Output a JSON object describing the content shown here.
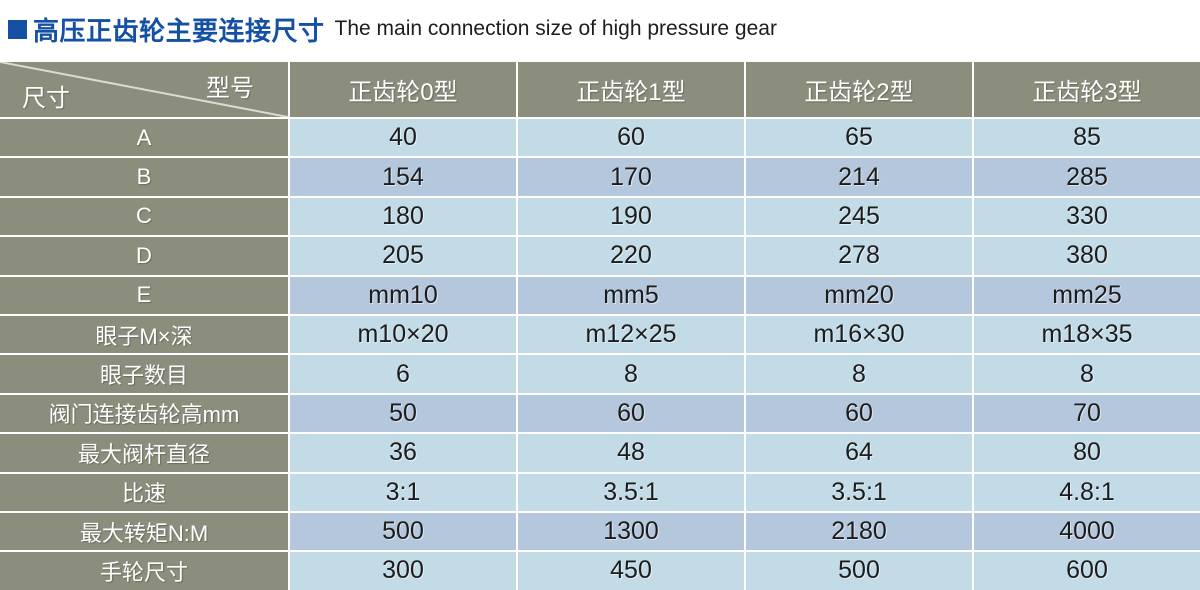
{
  "title": {
    "zh": "高压正齿轮主要连接尺寸",
    "en": "The main connection size of high pressure gear"
  },
  "colors": {
    "title_accent": "#1450a4",
    "header_bg": "#8b8e7c",
    "row_light_bg": "#c2dbe7",
    "row_dark_bg": "#b4c7dd",
    "header_text": "#ffffff",
    "cell_text": "#1c1c1c",
    "separator": "#ffffff"
  },
  "table": {
    "corner": {
      "top_right": "型号",
      "bottom_left": "尺寸"
    },
    "columns": [
      "正齿轮0型",
      "正齿轮1型",
      "正齿轮2型",
      "正齿轮3型"
    ],
    "rows": [
      {
        "label": "A",
        "values": [
          "40",
          "60",
          "65",
          "85"
        ],
        "shade": "light"
      },
      {
        "label": "B",
        "values": [
          "154",
          "170",
          "214",
          "285"
        ],
        "shade": "dark"
      },
      {
        "label": "C",
        "values": [
          "180",
          "190",
          "245",
          "330"
        ],
        "shade": "light"
      },
      {
        "label": "D",
        "values": [
          "205",
          "220",
          "278",
          "380"
        ],
        "shade": "light"
      },
      {
        "label": "E",
        "values": [
          "mm10",
          "mm5",
          "mm20",
          "mm25"
        ],
        "shade": "dark"
      },
      {
        "label": "眼子M×深",
        "values": [
          "m10×20",
          "m12×25",
          "m16×30",
          "m18×35"
        ],
        "shade": "light"
      },
      {
        "label": "眼子数目",
        "values": [
          "6",
          "8",
          "8",
          "8"
        ],
        "shade": "light"
      },
      {
        "label": "阀门连接齿轮高mm",
        "values": [
          "50",
          "60",
          "60",
          "70"
        ],
        "shade": "dark"
      },
      {
        "label": "最大阀杆直径",
        "values": [
          "36",
          "48",
          "64",
          "80"
        ],
        "shade": "light"
      },
      {
        "label": "比速",
        "values": [
          "3:1",
          "3.5:1",
          "3.5:1",
          "4.8:1"
        ],
        "shade": "light"
      },
      {
        "label": "最大转矩N:M",
        "values": [
          "500",
          "1300",
          "2180",
          "4000"
        ],
        "shade": "dark"
      },
      {
        "label": "手轮尺寸",
        "values": [
          "300",
          "450",
          "500",
          "600"
        ],
        "shade": "light"
      }
    ]
  }
}
